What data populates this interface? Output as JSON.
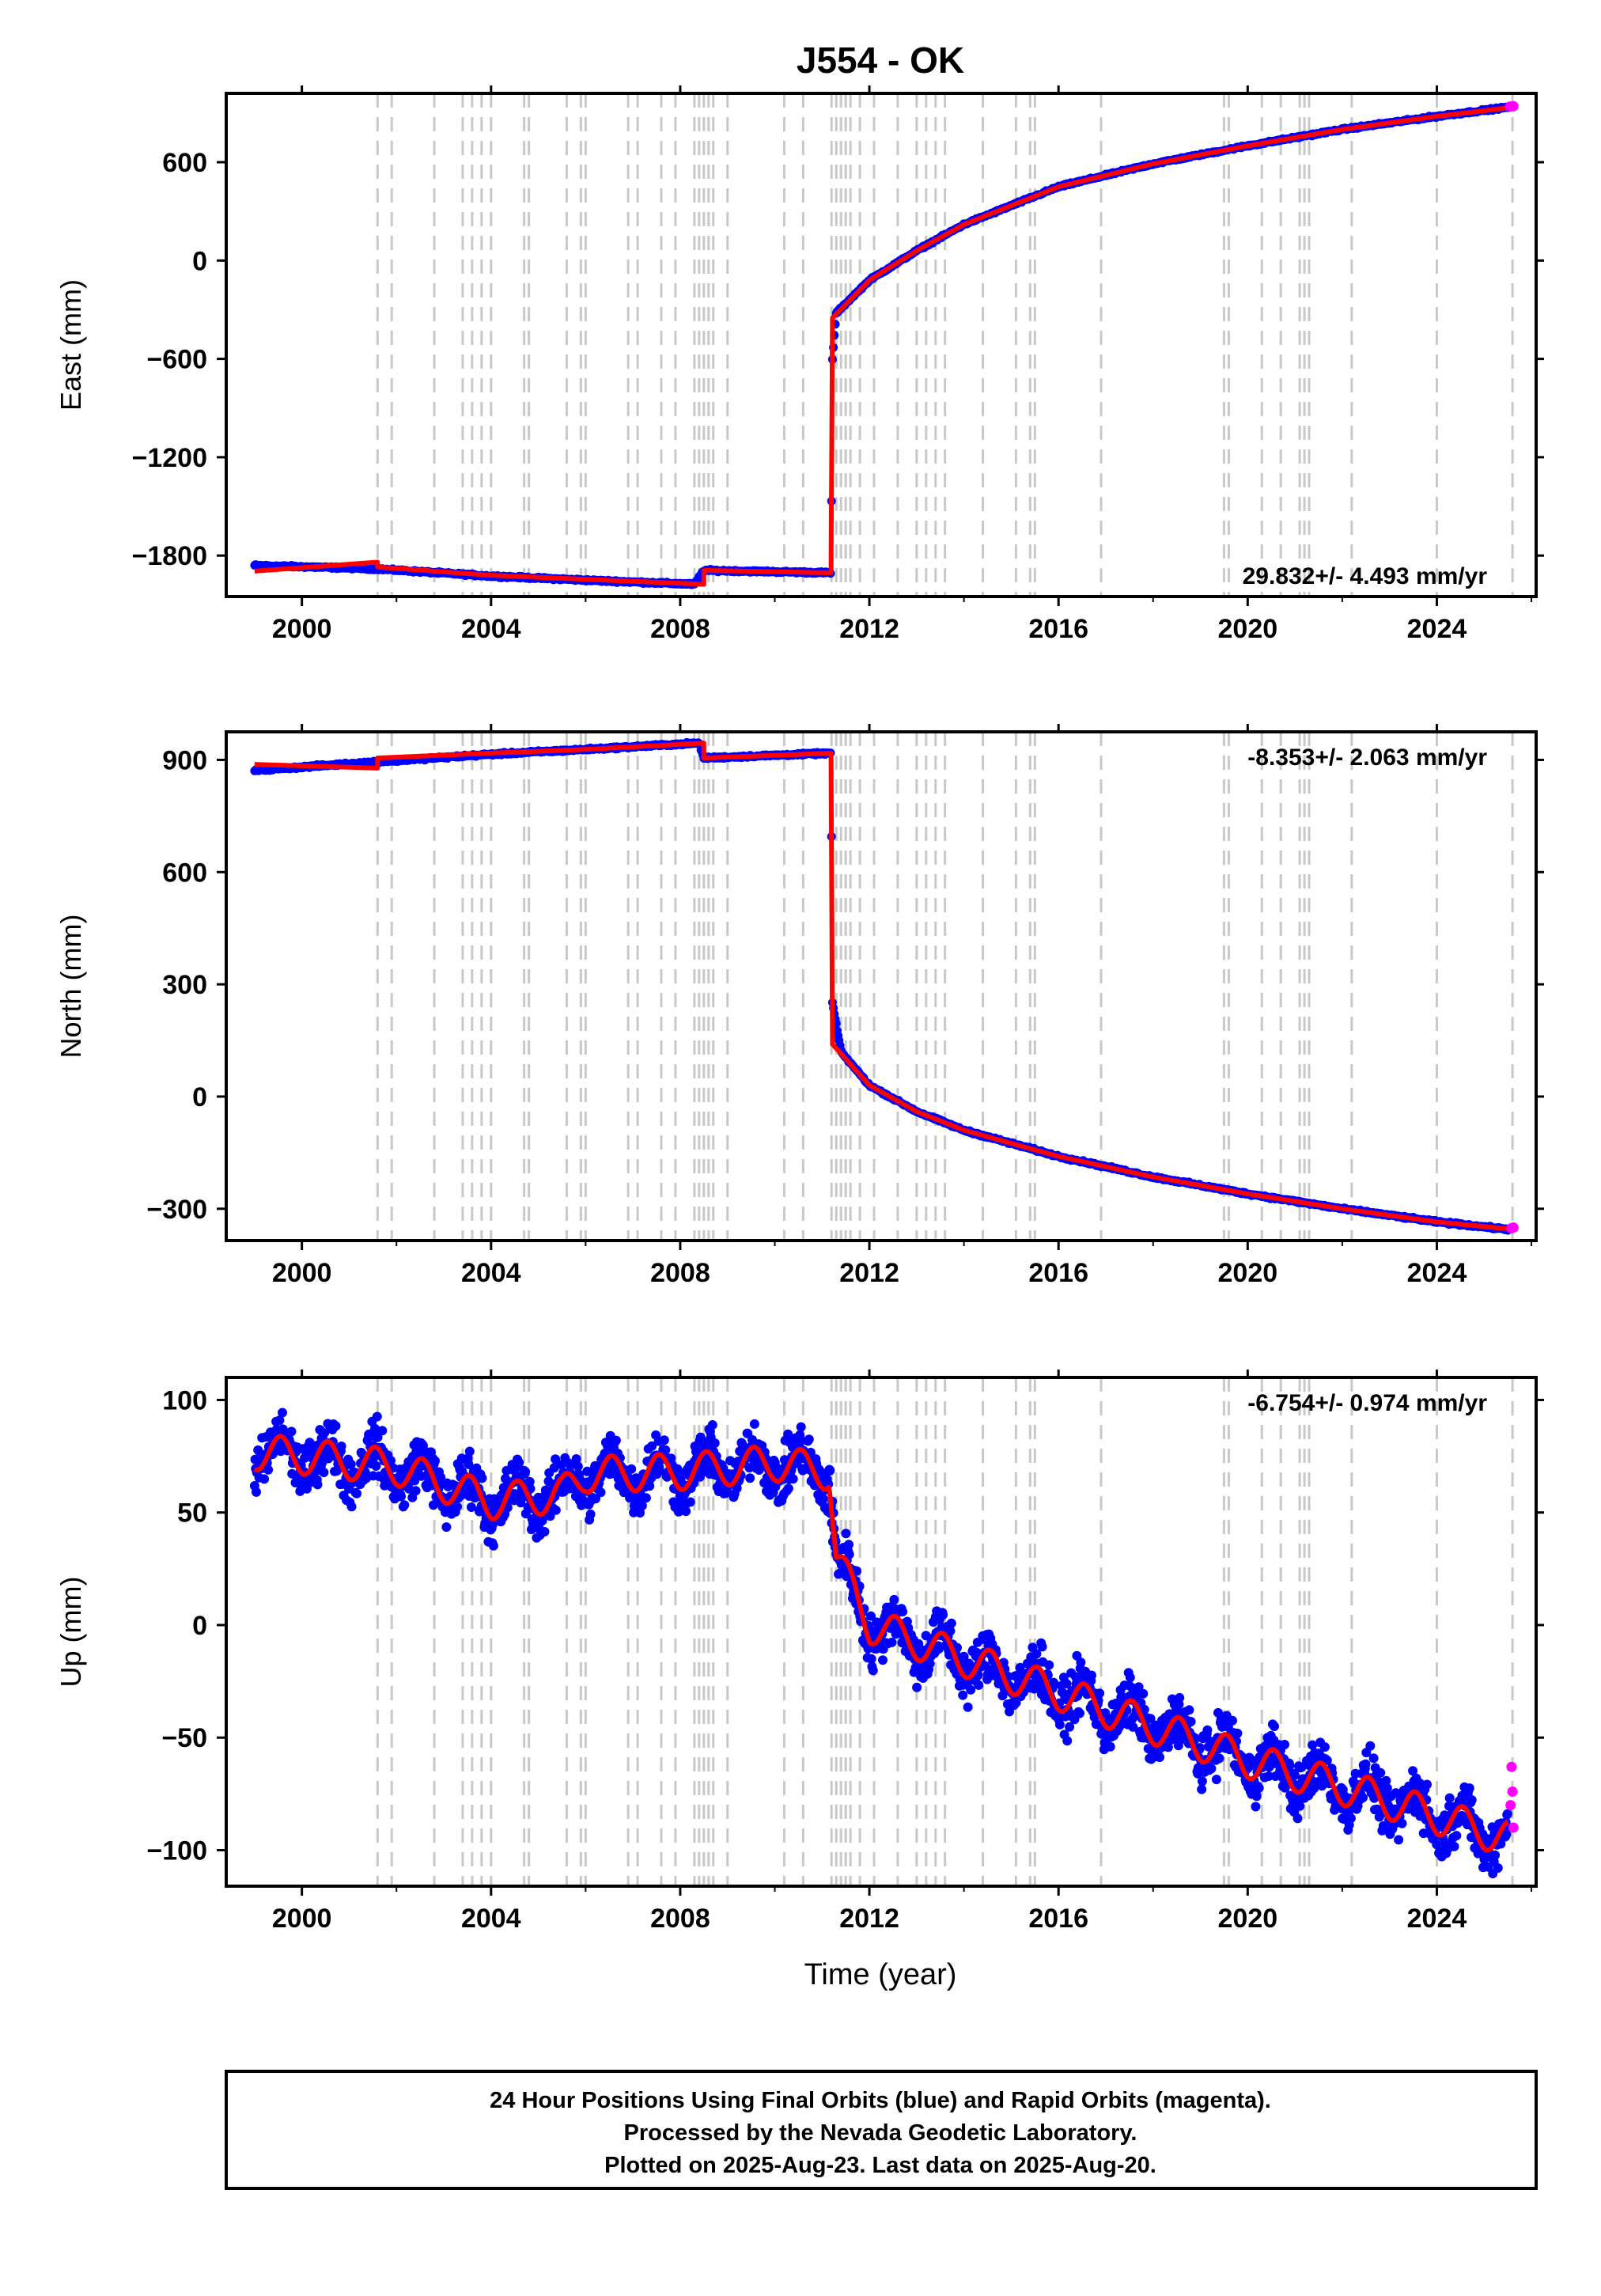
{
  "title": "J554 - OK",
  "xlabel": "Time (year)",
  "x_ticks": [
    2000,
    2004,
    2008,
    2012,
    2016,
    2020,
    2024
  ],
  "x_range": [
    1998.4,
    2026.1
  ],
  "colors": {
    "final": "#0000ff",
    "rapid": "#ff00ff",
    "model": "#ff0000",
    "events": "#c8c8c8",
    "axis": "#000000"
  },
  "footer": {
    "line1": "24 Hour Positions Using Final Orbits (blue) and Rapid Orbits (magenta).",
    "line2": "Processed by the Nevada Geodetic Laboratory.",
    "line3": "Plotted on 2025-Aug-23. Last data on 2025-Aug-20."
  },
  "chart_data": [
    {
      "type": "scatter",
      "component": "east",
      "ylabel": "East (mm)",
      "rate": "29.832+/- 4.493 mm/yr",
      "ylim": [
        -2050,
        1020
      ],
      "y_ticks": [
        -1800,
        -1200,
        -600,
        0,
        600
      ],
      "event_lines": [
        2001.6,
        2001.9,
        2002.8,
        2003.4,
        2003.6,
        2003.8,
        2004.0,
        2004.7,
        2004.8,
        2005.6,
        2005.9,
        2006.0,
        2006.9,
        2007.1,
        2007.6,
        2007.9,
        2008.3,
        2008.4,
        2008.5,
        2008.6,
        2008.7,
        2009.0,
        2010.2,
        2010.6,
        2011.2,
        2011.3,
        2011.4,
        2011.5,
        2011.6,
        2011.8,
        2012.1,
        2012.6,
        2013.0,
        2013.2,
        2013.4,
        2013.6,
        2014.4,
        2015.1,
        2015.4,
        2015.5,
        2016.9,
        2019.5,
        2019.6,
        2020.3,
        2020.7,
        2021.1,
        2021.2,
        2021.3,
        2022.2,
        2024.0,
        2025.6
      ],
      "series": [
        {
          "name": "Final Orbits (blue)",
          "points": [
            [
              1999.0,
              -1860
            ],
            [
              2001.5,
              -1880
            ],
            [
              2004.0,
              -1925
            ],
            [
              2006.0,
              -1950
            ],
            [
              2008.3,
              -1975
            ],
            [
              2008.5,
              -1890
            ],
            [
              2011.19,
              -1905
            ],
            [
              2011.22,
              -600
            ],
            [
              2011.3,
              -320
            ],
            [
              2012.0,
              -120
            ],
            [
              2013.0,
              60
            ],
            [
              2014.0,
              220
            ],
            [
              2016.0,
              450
            ],
            [
              2018.0,
              590
            ],
            [
              2020.0,
              700
            ],
            [
              2022.0,
              800
            ],
            [
              2024.0,
              880
            ],
            [
              2025.5,
              935
            ]
          ]
        },
        {
          "name": "Rapid Orbits (magenta)",
          "points": [
            [
              2025.55,
              940
            ],
            [
              2025.62,
              942
            ]
          ]
        },
        {
          "name": "Model",
          "points": [
            [
              1999.0,
              -1895
            ],
            [
              2001.6,
              -1840
            ],
            [
              2001.6,
              -1870
            ],
            [
              2004.0,
              -1920
            ],
            [
              2006.0,
              -1945
            ],
            [
              2008.5,
              -1975
            ],
            [
              2008.5,
              -1890
            ],
            [
              2011.19,
              -1905
            ],
            [
              2011.22,
              -350
            ],
            [
              2012.0,
              -120
            ],
            [
              2013.0,
              60
            ],
            [
              2014.0,
              220
            ],
            [
              2016.0,
              450
            ],
            [
              2018.0,
              590
            ],
            [
              2020.0,
              700
            ],
            [
              2022.0,
              800
            ],
            [
              2024.0,
              880
            ],
            [
              2025.6,
              935
            ]
          ]
        }
      ]
    },
    {
      "type": "scatter",
      "component": "north",
      "ylabel": "North (mm)",
      "rate": "-8.353+/- 2.063 mm/yr",
      "ylim": [
        -385,
        975
      ],
      "y_ticks": [
        -300,
        0,
        300,
        600,
        900
      ],
      "event_lines": [
        2001.6,
        2001.9,
        2002.8,
        2003.4,
        2003.6,
        2003.8,
        2004.0,
        2004.7,
        2004.8,
        2005.6,
        2005.9,
        2006.0,
        2006.9,
        2007.1,
        2007.6,
        2007.9,
        2008.3,
        2008.4,
        2008.5,
        2008.6,
        2008.7,
        2009.0,
        2010.2,
        2010.6,
        2011.2,
        2011.3,
        2011.4,
        2011.5,
        2011.6,
        2011.8,
        2012.1,
        2012.6,
        2013.0,
        2013.2,
        2013.4,
        2013.6,
        2014.4,
        2015.1,
        2015.4,
        2015.5,
        2016.9,
        2019.5,
        2019.6,
        2020.3,
        2020.7,
        2021.1,
        2021.2,
        2021.3,
        2022.2,
        2024.0,
        2025.6
      ],
      "series": [
        {
          "name": "Final Orbits (blue)",
          "points": [
            [
              1999.0,
              872
            ],
            [
              2001.6,
              895
            ],
            [
              2004.0,
              915
            ],
            [
              2006.0,
              928
            ],
            [
              2008.4,
              945
            ],
            [
              2008.5,
              905
            ],
            [
              2011.19,
              918
            ],
            [
              2011.22,
              250
            ],
            [
              2011.4,
              120
            ],
            [
              2012.0,
              30
            ],
            [
              2013.0,
              -40
            ],
            [
              2014.0,
              -90
            ],
            [
              2016.0,
              -160
            ],
            [
              2018.0,
              -215
            ],
            [
              2020.0,
              -260
            ],
            [
              2022.0,
              -300
            ],
            [
              2024.0,
              -335
            ],
            [
              2025.5,
              -355
            ]
          ]
        },
        {
          "name": "Rapid Orbits (magenta)",
          "points": [
            [
              2025.58,
              -352
            ],
            [
              2025.62,
              -350
            ]
          ]
        },
        {
          "name": "Model",
          "points": [
            [
              1999.0,
              888
            ],
            [
              2001.6,
              878
            ],
            [
              2001.6,
              905
            ],
            [
              2004.0,
              918
            ],
            [
              2006.0,
              928
            ],
            [
              2008.5,
              945
            ],
            [
              2008.5,
              905
            ],
            [
              2011.19,
              918
            ],
            [
              2011.22,
              140
            ],
            [
              2012.0,
              30
            ],
            [
              2013.0,
              -40
            ],
            [
              2014.0,
              -90
            ],
            [
              2016.0,
              -160
            ],
            [
              2018.0,
              -215
            ],
            [
              2020.0,
              -260
            ],
            [
              2022.0,
              -300
            ],
            [
              2024.0,
              -335
            ],
            [
              2025.6,
              -355
            ]
          ]
        }
      ]
    },
    {
      "type": "scatter",
      "component": "up",
      "ylabel": "Up (mm)",
      "rate": "-6.754+/- 0.974 mm/yr",
      "ylim": [
        -116,
        110
      ],
      "y_ticks": [
        -100,
        -50,
        0,
        50,
        100
      ],
      "event_lines": [
        2001.6,
        2001.9,
        2002.8,
        2003.4,
        2003.6,
        2003.8,
        2004.0,
        2004.7,
        2004.8,
        2005.6,
        2005.9,
        2006.0,
        2006.9,
        2007.1,
        2007.6,
        2007.9,
        2008.3,
        2008.4,
        2008.5,
        2008.6,
        2008.7,
        2009.0,
        2010.2,
        2010.6,
        2011.2,
        2011.3,
        2011.4,
        2011.5,
        2011.6,
        2011.8,
        2012.1,
        2012.6,
        2013.0,
        2013.2,
        2013.4,
        2013.6,
        2014.4,
        2015.1,
        2015.4,
        2015.5,
        2016.9,
        2019.5,
        2019.6,
        2020.3,
        2020.7,
        2021.1,
        2021.2,
        2021.3,
        2022.2,
        2024.0,
        2025.6
      ],
      "series": [
        {
          "name": "Final Orbits (blue)",
          "points": [
            [
              1999.0,
              77
            ],
            [
              2000.0,
              75
            ],
            [
              2002.0,
              70
            ],
            [
              2004.0,
              55
            ],
            [
              2005.5,
              58
            ],
            [
              2006.0,
              67
            ],
            [
              2008.0,
              68
            ],
            [
              2010.0,
              72
            ],
            [
              2011.15,
              68
            ],
            [
              2011.3,
              30
            ],
            [
              2012.0,
              0
            ],
            [
              2014.0,
              -15
            ],
            [
              2016.0,
              -30
            ],
            [
              2018.0,
              -45
            ],
            [
              2020.0,
              -60
            ],
            [
              2022.0,
              -72
            ],
            [
              2024.0,
              -85
            ],
            [
              2025.5,
              -95
            ]
          ]
        },
        {
          "name": "Rapid Orbits (magenta)",
          "points": [
            [
              2025.56,
              -80
            ],
            [
              2025.58,
              -63
            ],
            [
              2025.6,
              -74
            ],
            [
              2025.62,
              -90
            ]
          ]
        },
        {
          "name": "Model",
          "points": [
            [
              1999.0,
              77
            ],
            [
              2000.0,
              75
            ],
            [
              2002.0,
              70
            ],
            [
              2004.0,
              55
            ],
            [
              2005.5,
              58
            ],
            [
              2006.0,
              67
            ],
            [
              2008.0,
              68
            ],
            [
              2010.0,
              72
            ],
            [
              2011.15,
              68
            ],
            [
              2011.3,
              30
            ],
            [
              2012.0,
              0
            ],
            [
              2014.0,
              -15
            ],
            [
              2016.0,
              -30
            ],
            [
              2018.0,
              -45
            ],
            [
              2020.0,
              -60
            ],
            [
              2022.0,
              -72
            ],
            [
              2024.0,
              -85
            ],
            [
              2025.5,
              -95
            ]
          ]
        }
      ]
    }
  ]
}
